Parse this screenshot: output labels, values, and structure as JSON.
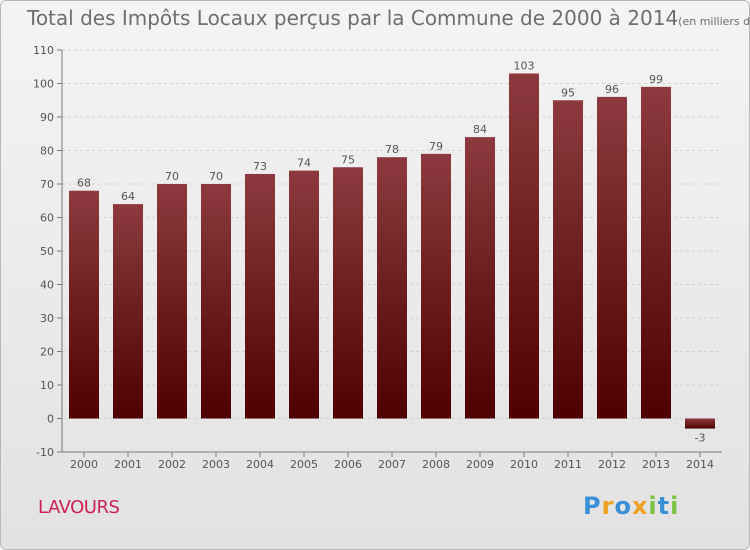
{
  "title": "Total des Impôts Locaux perçus par la Commune de 2000 à 2014",
  "unit": "(en milliers d'€)",
  "commune": "LAVOURS",
  "logo": {
    "letters": [
      "P",
      "r",
      "o",
      "x",
      "i",
      "t",
      "i"
    ],
    "colors": [
      "#3a8fd6",
      "#f0a020",
      "#3a8fd6",
      "#f0a020",
      "#7cc243",
      "#3a8fd6",
      "#7cc243"
    ]
  },
  "colors": {
    "bar_top": "#8c3a3f",
    "bar_bottom": "#4e0000",
    "grid": "#d2d2d2",
    "axis": "#7a7a7a",
    "label": "#555555"
  },
  "chart_data": {
    "type": "bar",
    "title": "Total des Impôts Locaux perçus par la Commune de 2000 à 2014",
    "xlabel": "",
    "ylabel": "",
    "ylim": [
      -10,
      110
    ],
    "yticks": [
      -10,
      0,
      10,
      20,
      30,
      40,
      50,
      60,
      70,
      80,
      90,
      100,
      110
    ],
    "grid": true,
    "categories": [
      "2000",
      "2001",
      "2002",
      "2003",
      "2004",
      "2005",
      "2006",
      "2007",
      "2008",
      "2009",
      "2010",
      "2011",
      "2012",
      "2013",
      "2014"
    ],
    "values": [
      68,
      64,
      70,
      70,
      73,
      74,
      75,
      78,
      79,
      84,
      103,
      95,
      96,
      99,
      -3
    ]
  }
}
